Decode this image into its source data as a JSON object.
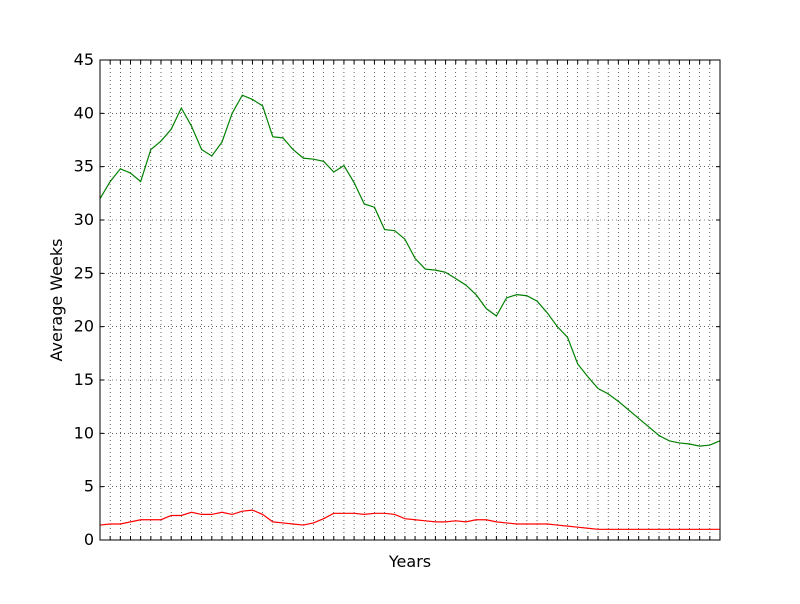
{
  "chart_data": {
    "type": "line",
    "title": "",
    "xlabel": "Years",
    "ylabel": "Average Weeks",
    "ylim": [
      0,
      45
    ],
    "xlim": [
      0,
      61
    ],
    "yticks": [
      0,
      5,
      10,
      15,
      20,
      25,
      30,
      35,
      40,
      45
    ],
    "x_tick_labels_shown": false,
    "grid": true,
    "legend": "none",
    "x": [
      0,
      1,
      2,
      3,
      4,
      5,
      6,
      7,
      8,
      9,
      10,
      11,
      12,
      13,
      14,
      15,
      16,
      17,
      18,
      19,
      20,
      21,
      22,
      23,
      24,
      25,
      26,
      27,
      28,
      29,
      30,
      31,
      32,
      33,
      34,
      35,
      36,
      37,
      38,
      39,
      40,
      41,
      42,
      43,
      44,
      45,
      46,
      47,
      48,
      49,
      50,
      51,
      52,
      53,
      54,
      55,
      56,
      57,
      58,
      59,
      60,
      61
    ],
    "series": [
      {
        "color": "#008000",
        "values": [
          32.0,
          33.6,
          34.8,
          34.4,
          33.6,
          36.6,
          37.4,
          38.5,
          40.5,
          38.8,
          36.6,
          36.0,
          37.3,
          40.0,
          41.7,
          41.3,
          40.7,
          37.8,
          37.7,
          36.6,
          35.8,
          35.7,
          35.5,
          34.5,
          35.1,
          33.5,
          31.5,
          31.2,
          29.1,
          29.0,
          28.2,
          26.4,
          25.4,
          25.3,
          25.1,
          24.5,
          23.9,
          23.0,
          21.7,
          21.0,
          22.7,
          23.0,
          22.9,
          22.4,
          21.3,
          20.0,
          19.0,
          16.5,
          15.3,
          14.2,
          13.7,
          13.0,
          12.2,
          11.4,
          10.6,
          9.8,
          9.3,
          9.1,
          9.0,
          8.8,
          8.9,
          9.3
        ]
      },
      {
        "color": "#ff0000",
        "values": [
          1.4,
          1.5,
          1.5,
          1.7,
          1.9,
          1.9,
          1.9,
          2.3,
          2.3,
          2.6,
          2.4,
          2.4,
          2.6,
          2.4,
          2.7,
          2.8,
          2.4,
          1.7,
          1.6,
          1.5,
          1.4,
          1.6,
          2.0,
          2.5,
          2.5,
          2.5,
          2.4,
          2.5,
          2.5,
          2.4,
          2.0,
          1.9,
          1.8,
          1.7,
          1.7,
          1.8,
          1.7,
          1.9,
          1.9,
          1.7,
          1.6,
          1.5,
          1.5,
          1.5,
          1.5,
          1.4,
          1.3,
          1.2,
          1.1,
          1.0,
          1.0,
          1.0,
          1.0,
          1.0,
          1.0,
          1.0,
          1.0,
          1.0,
          1.0,
          1.0,
          1.0,
          1.0
        ]
      }
    ]
  }
}
